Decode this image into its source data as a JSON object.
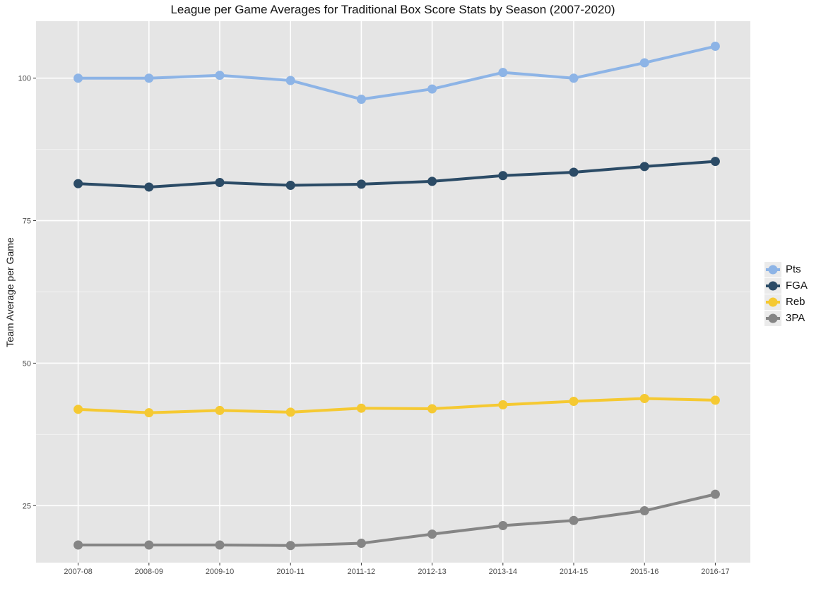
{
  "chart_data": {
    "type": "line",
    "title": "League per Game Averages for Traditional Box Score Stats by Season (2007-2020)",
    "xlabel": "",
    "ylabel": "Team Average per Game",
    "categories": [
      "2007-08",
      "2008-09",
      "2009-10",
      "2010-11",
      "2011-12",
      "2012-13",
      "2013-14",
      "2014-15",
      "2015-16",
      "2016-17"
    ],
    "ylim": [
      15,
      110
    ],
    "yticks": [
      25,
      50,
      75,
      100
    ],
    "grid": true,
    "legend_position": "right",
    "series": [
      {
        "name": "Pts",
        "color": "#8db4e6",
        "values": [
          100.0,
          100.0,
          100.5,
          99.6,
          96.3,
          98.1,
          101.0,
          100.0,
          102.7,
          105.6
        ]
      },
      {
        "name": "FGA",
        "color": "#2b4b66",
        "values": [
          81.5,
          80.9,
          81.7,
          81.2,
          81.4,
          81.9,
          82.9,
          83.5,
          84.5,
          85.4
        ]
      },
      {
        "name": "Reb",
        "color": "#f5c932",
        "values": [
          41.9,
          41.3,
          41.7,
          41.4,
          42.1,
          42.0,
          42.7,
          43.3,
          43.8,
          43.5
        ]
      },
      {
        "name": "3PA",
        "color": "#858585",
        "values": [
          18.1,
          18.1,
          18.1,
          18.0,
          18.4,
          20.0,
          21.5,
          22.4,
          24.1,
          27.0
        ]
      }
    ]
  }
}
